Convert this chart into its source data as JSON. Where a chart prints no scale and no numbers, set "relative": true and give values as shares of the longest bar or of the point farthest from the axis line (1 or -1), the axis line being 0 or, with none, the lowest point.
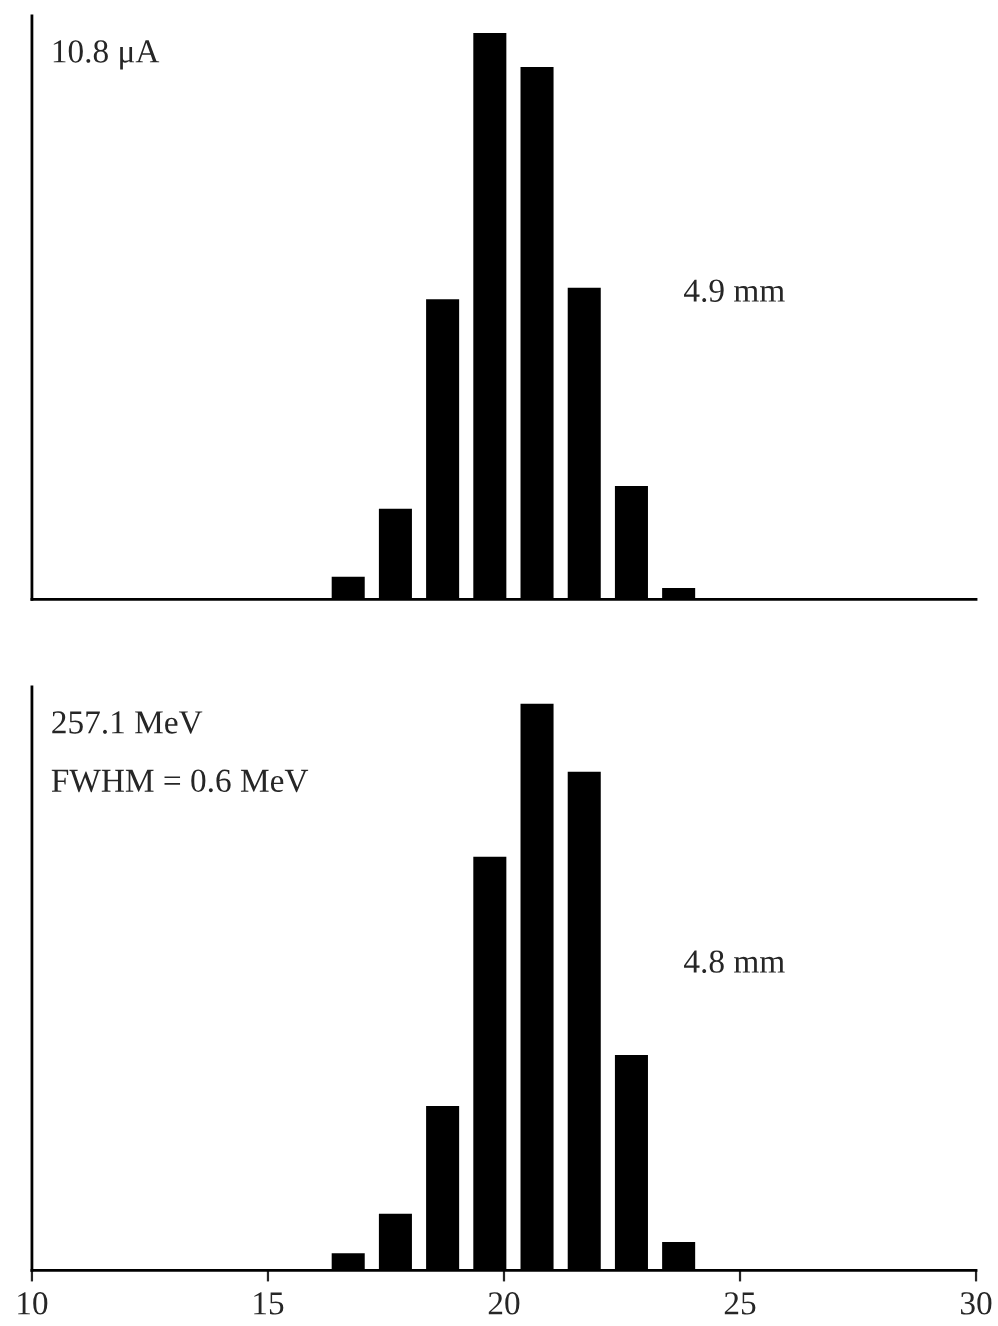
{
  "chart_data": [
    {
      "type": "bar",
      "relative": true,
      "x": [
        16.7,
        17.7,
        18.7,
        19.7,
        20.7,
        21.7,
        22.7,
        23.7
      ],
      "values": [
        0.04,
        0.16,
        0.53,
        1,
        0.94,
        0.55,
        0.2,
        0.02
      ],
      "color": "#000000",
      "xlim": [
        10,
        30
      ],
      "tick_labels": false,
      "grid": false,
      "legend": false,
      "annotations": [
        "10.8 μA",
        "4.9 mm"
      ]
    },
    {
      "type": "bar",
      "relative": true,
      "x": [
        16.7,
        17.7,
        18.7,
        19.7,
        20.7,
        21.7,
        22.7,
        23.7
      ],
      "values": [
        0.03,
        0.1,
        0.29,
        0.73,
        1,
        0.88,
        0.38,
        0.05
      ],
      "color": "#000000",
      "xlim": [
        10,
        30
      ],
      "xticks": [
        10,
        15,
        20,
        25,
        30
      ],
      "tick_labels": "x",
      "grid": false,
      "legend": false,
      "annotations": [
        "257.1 MeV",
        "FWHM = 0.6 MeV",
        "4.8 mm"
      ]
    }
  ]
}
